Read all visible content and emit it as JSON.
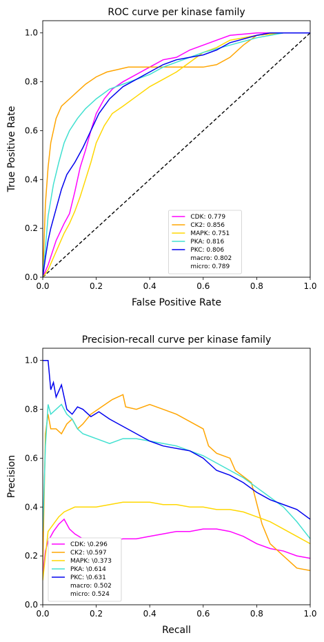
{
  "chart_data": [
    {
      "type": "line",
      "title": "ROC curve per kinase family",
      "xlabel": "False Positive Rate",
      "ylabel": "True Positive Rate",
      "xlim": [
        0,
        1
      ],
      "ylim": [
        0,
        1.05
      ],
      "xticks": [
        "0.0",
        "0.2",
        "0.4",
        "0.6",
        "0.8",
        "1.0"
      ],
      "yticks": [
        "0.0",
        "0.2",
        "0.4",
        "0.6",
        "0.8",
        "1.0"
      ],
      "grid": false,
      "legend_position": "lower-right",
      "series": [
        {
          "name": "CDK: 0.779",
          "color": "#ff00ff",
          "x": [
            0,
            0.02,
            0.05,
            0.08,
            0.1,
            0.12,
            0.14,
            0.16,
            0.18,
            0.2,
            0.23,
            0.26,
            0.3,
            0.35,
            0.4,
            0.45,
            0.5,
            0.55,
            0.6,
            0.65,
            0.7,
            0.8,
            0.9,
            1
          ],
          "y": [
            0,
            0.05,
            0.15,
            0.22,
            0.26,
            0.35,
            0.45,
            0.52,
            0.6,
            0.67,
            0.73,
            0.77,
            0.8,
            0.83,
            0.86,
            0.89,
            0.9,
            0.93,
            0.95,
            0.97,
            0.99,
            1,
            1,
            1
          ]
        },
        {
          "name": "CK2: 0.856",
          "color": "#ffa500",
          "x": [
            0,
            0.01,
            0.02,
            0.03,
            0.05,
            0.07,
            0.1,
            0.13,
            0.16,
            0.2,
            0.24,
            0.28,
            0.32,
            0.4,
            0.5,
            0.6,
            0.65,
            0.7,
            0.75,
            0.8,
            0.9,
            1
          ],
          "y": [
            0,
            0.3,
            0.45,
            0.55,
            0.65,
            0.7,
            0.73,
            0.76,
            0.79,
            0.82,
            0.84,
            0.85,
            0.86,
            0.86,
            0.86,
            0.86,
            0.87,
            0.9,
            0.95,
            0.99,
            1,
            1
          ]
        },
        {
          "name": "MAPK: 0.751",
          "color": "#ffd700",
          "x": [
            0,
            0.02,
            0.04,
            0.06,
            0.08,
            0.1,
            0.12,
            0.14,
            0.16,
            0.18,
            0.2,
            0.23,
            0.26,
            0.3,
            0.35,
            0.4,
            0.45,
            0.5,
            0.55,
            0.6,
            0.65,
            0.7,
            0.8,
            0.9,
            1
          ],
          "y": [
            0,
            0.03,
            0.08,
            0.13,
            0.18,
            0.22,
            0.27,
            0.33,
            0.4,
            0.47,
            0.55,
            0.62,
            0.67,
            0.7,
            0.74,
            0.78,
            0.81,
            0.84,
            0.88,
            0.92,
            0.94,
            0.97,
            0.99,
            1,
            1
          ]
        },
        {
          "name": "PKA: 0.816",
          "color": "#40e0d0",
          "x": [
            0,
            0.01,
            0.02,
            0.04,
            0.06,
            0.08,
            0.1,
            0.13,
            0.16,
            0.2,
            0.25,
            0.3,
            0.35,
            0.4,
            0.45,
            0.5,
            0.55,
            0.6,
            0.7,
            0.8,
            0.9,
            1
          ],
          "y": [
            0,
            0.12,
            0.25,
            0.38,
            0.47,
            0.55,
            0.6,
            0.65,
            0.69,
            0.73,
            0.77,
            0.79,
            0.81,
            0.83,
            0.86,
            0.88,
            0.9,
            0.92,
            0.95,
            0.98,
            1,
            1
          ]
        },
        {
          "name": "PKC: 0.806",
          "color": "#0000ee",
          "x": [
            0,
            0.01,
            0.02,
            0.03,
            0.05,
            0.07,
            0.09,
            0.12,
            0.15,
            0.18,
            0.21,
            0.25,
            0.3,
            0.35,
            0.4,
            0.45,
            0.5,
            0.55,
            0.6,
            0.65,
            0.7,
            0.8,
            0.85,
            0.9,
            1
          ],
          "y": [
            0,
            0.08,
            0.15,
            0.2,
            0.28,
            0.36,
            0.42,
            0.47,
            0.53,
            0.6,
            0.67,
            0.73,
            0.78,
            0.81,
            0.84,
            0.87,
            0.89,
            0.9,
            0.91,
            0.93,
            0.96,
            0.99,
            1,
            1,
            1
          ]
        },
        {
          "name": "macro: 0.802",
          "color": "none",
          "x": [],
          "y": []
        },
        {
          "name": "micro: 0.789",
          "color": "none",
          "x": [],
          "y": []
        }
      ],
      "reference_line": {
        "x": [
          0,
          1
        ],
        "y": [
          0,
          1
        ],
        "color": "#000000",
        "style": "dashed"
      }
    },
    {
      "type": "line",
      "title": "Precision-recall curve per kinase family",
      "xlabel": "Recall",
      "ylabel": "Precision",
      "xlim": [
        0,
        1
      ],
      "ylim": [
        0,
        1.05
      ],
      "xticks": [
        "0.0",
        "0.2",
        "0.4",
        "0.6",
        "0.8",
        "1.0"
      ],
      "yticks": [
        "0.0",
        "0.2",
        "0.4",
        "0.6",
        "0.8",
        "1.0"
      ],
      "grid": false,
      "legend_position": "lower-left",
      "series": [
        {
          "name": "CDK: \\0.296",
          "color": "#ff00ff",
          "x": [
            0,
            0.01,
            0.02,
            0.04,
            0.06,
            0.08,
            0.1,
            0.12,
            0.15,
            0.2,
            0.25,
            0.3,
            0.35,
            0.4,
            0.45,
            0.5,
            0.55,
            0.6,
            0.65,
            0.7,
            0.75,
            0.8,
            0.85,
            0.9,
            0.95,
            1
          ],
          "y": [
            0.12,
            0.22,
            0.26,
            0.3,
            0.33,
            0.35,
            0.31,
            0.29,
            0.27,
            0.26,
            0.26,
            0.27,
            0.27,
            0.28,
            0.29,
            0.3,
            0.3,
            0.31,
            0.31,
            0.3,
            0.28,
            0.25,
            0.23,
            0.22,
            0.2,
            0.19
          ]
        },
        {
          "name": "CK2: \\0.597",
          "color": "#ffa500",
          "x": [
            0,
            0.01,
            0.02,
            0.03,
            0.05,
            0.07,
            0.09,
            0.11,
            0.13,
            0.15,
            0.18,
            0.22,
            0.26,
            0.3,
            0.31,
            0.35,
            0.4,
            0.45,
            0.5,
            0.55,
            0.6,
            0.62,
            0.65,
            0.7,
            0.72,
            0.78,
            0.82,
            0.85,
            0.9,
            0.95,
            1
          ],
          "y": [
            0.15,
            0.7,
            0.78,
            0.72,
            0.72,
            0.7,
            0.74,
            0.76,
            0.72,
            0.74,
            0.78,
            0.81,
            0.84,
            0.86,
            0.81,
            0.8,
            0.82,
            0.8,
            0.78,
            0.75,
            0.72,
            0.65,
            0.62,
            0.6,
            0.55,
            0.5,
            0.33,
            0.25,
            0.2,
            0.15,
            0.14
          ]
        },
        {
          "name": "MAPK: \\0.373",
          "color": "#ffd700",
          "x": [
            0,
            0.02,
            0.04,
            0.06,
            0.08,
            0.1,
            0.12,
            0.15,
            0.2,
            0.25,
            0.3,
            0.35,
            0.4,
            0.45,
            0.5,
            0.55,
            0.6,
            0.65,
            0.7,
            0.75,
            0.8,
            0.85,
            0.9,
            0.95,
            1
          ],
          "y": [
            0.1,
            0.3,
            0.33,
            0.36,
            0.38,
            0.39,
            0.4,
            0.4,
            0.4,
            0.41,
            0.42,
            0.42,
            0.42,
            0.41,
            0.41,
            0.4,
            0.4,
            0.39,
            0.39,
            0.38,
            0.36,
            0.34,
            0.31,
            0.28,
            0.25
          ]
        },
        {
          "name": "PKA: \\0.614",
          "color": "#40e0d0",
          "x": [
            0,
            0.01,
            0.02,
            0.03,
            0.05,
            0.07,
            0.09,
            0.11,
            0.13,
            0.15,
            0.2,
            0.25,
            0.3,
            0.35,
            0.4,
            0.45,
            0.5,
            0.55,
            0.6,
            0.65,
            0.7,
            0.75,
            0.8,
            0.85,
            0.9,
            0.95,
            1
          ],
          "y": [
            0.3,
            0.65,
            0.82,
            0.78,
            0.8,
            0.82,
            0.78,
            0.76,
            0.72,
            0.7,
            0.68,
            0.66,
            0.68,
            0.68,
            0.67,
            0.66,
            0.65,
            0.63,
            0.61,
            0.58,
            0.55,
            0.52,
            0.48,
            0.44,
            0.4,
            0.34,
            0.27
          ]
        },
        {
          "name": "PKC: \\0.631",
          "color": "#0000ee",
          "x": [
            0,
            0.01,
            0.02,
            0.03,
            0.04,
            0.05,
            0.07,
            0.09,
            0.11,
            0.13,
            0.15,
            0.18,
            0.21,
            0.25,
            0.3,
            0.35,
            0.4,
            0.45,
            0.5,
            0.55,
            0.6,
            0.65,
            0.7,
            0.75,
            0.8,
            0.85,
            0.9,
            0.95,
            1
          ],
          "y": [
            1,
            1,
            1,
            0.88,
            0.91,
            0.85,
            0.9,
            0.8,
            0.78,
            0.81,
            0.8,
            0.77,
            0.79,
            0.76,
            0.73,
            0.7,
            0.67,
            0.65,
            0.64,
            0.63,
            0.6,
            0.55,
            0.53,
            0.5,
            0.46,
            0.43,
            0.41,
            0.39,
            0.35
          ]
        },
        {
          "name": "macro: 0.502",
          "color": "none",
          "x": [],
          "y": []
        },
        {
          "name": "micro: 0.524",
          "color": "none",
          "x": [],
          "y": []
        }
      ]
    }
  ]
}
